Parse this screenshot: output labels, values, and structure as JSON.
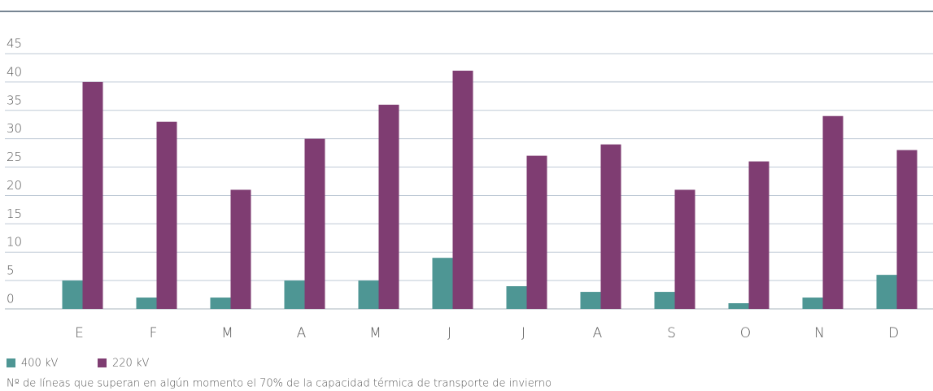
{
  "chart_data": {
    "type": "bar",
    "categories": [
      "E",
      "F",
      "M",
      "A",
      "M",
      "J",
      "J",
      "A",
      "S",
      "O",
      "N",
      "D"
    ],
    "series": [
      {
        "name": "400 kV",
        "color": "#4e9694",
        "values": [
          5,
          2,
          2,
          5,
          5,
          9,
          4,
          3,
          3,
          1,
          2,
          6
        ]
      },
      {
        "name": "220 kV",
        "color": "#7f3d72",
        "values": [
          40,
          33,
          21,
          30,
          36,
          42,
          27,
          29,
          21,
          26,
          34,
          28
        ]
      }
    ],
    "ylim": [
      0,
      45
    ],
    "yticks": [
      0,
      5,
      10,
      15,
      20,
      25,
      30,
      35,
      40,
      45
    ],
    "grid": true,
    "footnote": "Nº de líneas que superan en algún momento el 70% de la capacidad térmica de transporte de invierno"
  }
}
